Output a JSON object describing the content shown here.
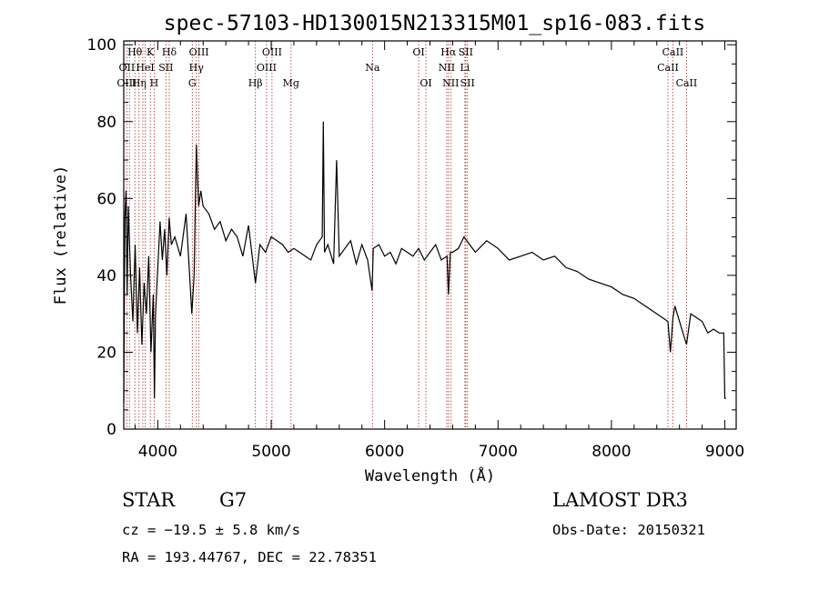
{
  "chart_data": {
    "type": "line",
    "title": "spec-57103-HD130015N213315M01_sp16-083.fits",
    "xlabel": "Wavelength (Å)",
    "ylabel": "Flux (relative)",
    "xlim": [
      3700,
      9100
    ],
    "ylim": [
      0,
      101
    ],
    "xticks": [
      4000,
      5000,
      6000,
      7000,
      8000,
      9000
    ],
    "yticks": [
      0,
      20,
      40,
      60,
      80,
      100
    ],
    "tick_labels_x": [
      "4000",
      "5000",
      "6000",
      "7000",
      "8000",
      "9000"
    ],
    "tick_labels_y": [
      "0",
      "20",
      "40",
      "60",
      "80",
      "100"
    ],
    "series": [
      {
        "name": "flux",
        "x": [
          3700,
          3710,
          3720,
          3730,
          3740,
          3760,
          3780,
          3800,
          3820,
          3840,
          3860,
          3880,
          3900,
          3920,
          3940,
          3960,
          3970,
          3980,
          4000,
          4020,
          4040,
          4060,
          4080,
          4100,
          4120,
          4150,
          4200,
          4250,
          4300,
          4320,
          4340,
          4360,
          4380,
          4400,
          4450,
          4500,
          4550,
          4600,
          4650,
          4700,
          4750,
          4800,
          4861,
          4900,
          4950,
          5000,
          5050,
          5100,
          5150,
          5200,
          5250,
          5300,
          5350,
          5400,
          5450,
          5460,
          5470,
          5500,
          5550,
          5577,
          5600,
          5650,
          5700,
          5750,
          5800,
          5850,
          5890,
          5900,
          5950,
          6000,
          6050,
          6100,
          6150,
          6200,
          6250,
          6300,
          6350,
          6400,
          6450,
          6500,
          6550,
          6563,
          6580,
          6600,
          6650,
          6700,
          6750,
          6800,
          6900,
          7000,
          7100,
          7200,
          7300,
          7400,
          7500,
          7600,
          7700,
          7800,
          7900,
          8000,
          8100,
          8200,
          8300,
          8400,
          8498,
          8520,
          8542,
          8560,
          8600,
          8662,
          8700,
          8800,
          8850,
          8900,
          8950,
          8990,
          9000,
          9010
        ],
        "values": [
          7,
          55,
          62,
          35,
          58,
          40,
          28,
          48,
          25,
          42,
          22,
          38,
          30,
          45,
          20,
          35,
          8,
          30,
          42,
          54,
          44,
          52,
          40,
          55,
          48,
          50,
          45,
          56,
          30,
          40,
          74,
          58,
          62,
          58,
          56,
          52,
          54,
          49,
          52,
          50,
          45,
          53,
          38,
          48,
          46,
          50,
          49,
          48,
          46,
          47,
          46,
          45,
          44,
          48,
          50,
          80,
          46,
          48,
          43,
          70,
          45,
          47,
          49,
          43,
          48,
          44,
          36,
          47,
          48,
          45,
          46,
          43,
          47,
          46,
          45,
          47,
          44,
          46,
          48,
          44,
          45,
          35,
          46,
          46,
          47,
          50,
          48,
          46,
          49,
          47,
          44,
          45,
          46,
          44,
          45,
          42,
          41,
          39,
          38,
          37,
          35,
          34,
          32,
          30,
          28,
          20,
          29,
          32,
          28,
          22,
          30,
          28,
          25,
          26,
          25,
          25,
          8,
          8
        ]
      }
    ],
    "line_labels": [
      {
        "text": "Hθ",
        "wl": 3798,
        "row": 1
      },
      {
        "text": "OII",
        "wl": 3727,
        "row": 2
      },
      {
        "text": "OIII",
        "wl": 3727,
        "row": 3
      },
      {
        "text": "K",
        "wl": 3934,
        "row": 1
      },
      {
        "text": "HeI",
        "wl": 3889,
        "row": 2
      },
      {
        "text": "Hη",
        "wl": 3835,
        "row": 3
      },
      {
        "text": "H",
        "wl": 3968,
        "row": 3
      },
      {
        "text": "Hδ",
        "wl": 4101,
        "row": 1
      },
      {
        "text": "SII",
        "wl": 4072,
        "row": 2
      },
      {
        "text": "OIII",
        "wl": 4363,
        "row": 1
      },
      {
        "text": "Hγ",
        "wl": 4340,
        "row": 2
      },
      {
        "text": "G",
        "wl": 4304,
        "row": 3
      },
      {
        "text": "OIII",
        "wl": 5007,
        "row": 1
      },
      {
        "text": "OIII",
        "wl": 4959,
        "row": 2
      },
      {
        "text": "Hβ",
        "wl": 4861,
        "row": 3
      },
      {
        "text": "Mg",
        "wl": 5175,
        "row": 3
      },
      {
        "text": "Na",
        "wl": 5893,
        "row": 2
      },
      {
        "text": "OI",
        "wl": 6300,
        "row": 1
      },
      {
        "text": "OI",
        "wl": 6364,
        "row": 3
      },
      {
        "text": "Hα",
        "wl": 6563,
        "row": 1
      },
      {
        "text": "SII",
        "wl": 6716,
        "row": 1
      },
      {
        "text": "NII",
        "wl": 6548,
        "row": 2
      },
      {
        "text": "Li",
        "wl": 6708,
        "row": 2
      },
      {
        "text": "NII",
        "wl": 6583,
        "row": 3
      },
      {
        "text": "SII",
        "wl": 6731,
        "row": 3
      },
      {
        "text": "CaII",
        "wl": 8542,
        "row": 1
      },
      {
        "text": "CaII",
        "wl": 8498,
        "row": 2
      },
      {
        "text": "CaII",
        "wl": 8662,
        "row": 3
      }
    ],
    "line_marker_wavelengths": [
      3727,
      3750,
      3798,
      3835,
      3868,
      3889,
      3934,
      3968,
      4072,
      4101,
      4304,
      4340,
      4363,
      4861,
      4959,
      5007,
      5175,
      5893,
      6300,
      6364,
      6548,
      6563,
      6583,
      6708,
      6716,
      6731,
      8498,
      8542,
      8662
    ]
  },
  "info": {
    "object_class": "STAR",
    "subclass": "G7",
    "survey": "LAMOST DR3",
    "cz": "cz = −19.5 ± 5.8 km/s",
    "obs_date": "Obs-Date: 20150321",
    "coords": "RA = 193.44767, DEC =  22.78351"
  },
  "colors": {
    "line_marker": "#a52a2a",
    "spectrum": "#000000",
    "axes": "#000000"
  }
}
